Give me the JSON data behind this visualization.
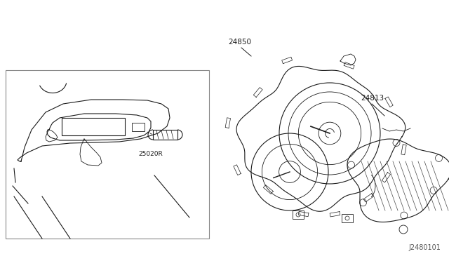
{
  "bg_color": "#ffffff",
  "line_color": "#1a1a1a",
  "fig_width": 6.4,
  "fig_height": 3.72,
  "dpi": 100,
  "diagram_ref": "J2480101",
  "label_24850": "24850",
  "label_24813": "24813",
  "label_25020R": "25020R"
}
